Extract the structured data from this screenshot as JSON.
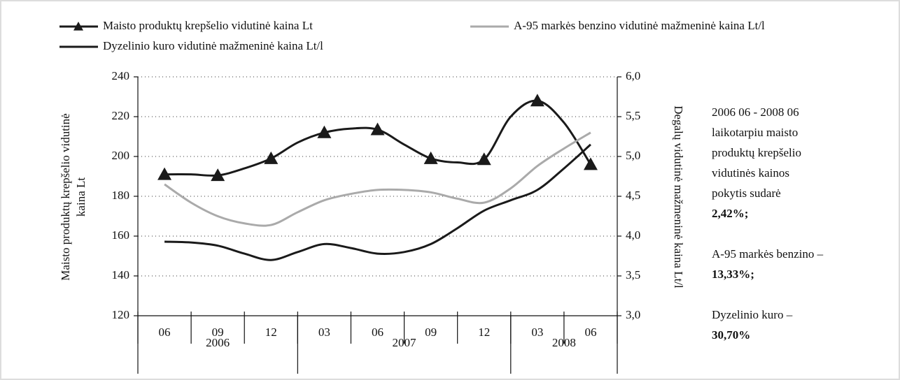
{
  "chart_data": {
    "type": "line",
    "categories": [
      "06",
      null,
      "09",
      null,
      "12",
      null,
      "03",
      null,
      "06",
      null,
      "09",
      null,
      "12",
      null,
      "03",
      null,
      "06"
    ],
    "year_groups": [
      {
        "label": "2006",
        "count": 3
      },
      {
        "label": "2007",
        "count": 4
      },
      {
        "label": "2008",
        "count": 2
      }
    ],
    "y_label": [
      "Maisto produktų krepšelio vidutinė",
      "kaina Lt"
    ],
    "y2_label": "Degalų vidutinė mažmeninė kaina Lt/l",
    "ylim": [
      120,
      240
    ],
    "yticks": [
      120,
      140,
      160,
      180,
      200,
      220,
      240
    ],
    "y2lim": [
      3,
      6
    ],
    "y2ticks": [
      {
        "value": 3,
        "label": "3,0"
      },
      {
        "value": 3.5,
        "label": "3,5"
      },
      {
        "value": 4,
        "label": "4,0"
      },
      {
        "value": 4.5,
        "label": "4,5"
      },
      {
        "value": 5,
        "label": "5,0"
      },
      {
        "value": 5.5,
        "label": "5,5"
      },
      {
        "value": 6,
        "label": "6,0"
      }
    ],
    "grid": true,
    "series": [
      {
        "name": "Maisto produktų krepšelio vidutinė kaina Lt",
        "color": "#1a1a1a",
        "marker": "triangle",
        "values": [
          191,
          191,
          190.5,
          194,
          199,
          207,
          212,
          214,
          213.5,
          206,
          199,
          197,
          198.5,
          220,
          228,
          217,
          196
        ]
      },
      {
        "name": "A-95 markės benzino vidutinė mažmeninė kaina Lt/l",
        "color": "#aaaaaa",
        "axis": "y2",
        "values": [
          4.65,
          4.42,
          4.25,
          4.16,
          4.14,
          4.3,
          4.45,
          4.53,
          4.58,
          4.58,
          4.55,
          4.47,
          4.42,
          4.6,
          4.88,
          5.1,
          5.3
        ]
      },
      {
        "name": "Dyzelinio kuro vidutinė mažmeninė kaina Lt/l",
        "color": "#1a1a1a",
        "axis": "y2",
        "values": [
          3.93,
          3.92,
          3.88,
          3.78,
          3.7,
          3.8,
          3.9,
          3.85,
          3.78,
          3.8,
          3.9,
          4.1,
          4.32,
          4.45,
          4.58,
          4.85,
          5.15
        ]
      }
    ],
    "annotation": [
      {
        "lines": [
          "2006 06 - 2008 06",
          "laikotarpiu maisto",
          "produktų krepšelio",
          "vidutinės kainos",
          "pokytis sudarė"
        ],
        "bold": "2,42%;"
      },
      {
        "lines": [
          "A-95 markės benzino –"
        ],
        "bold": "13,33%;"
      },
      {
        "lines": [
          "Dyzelinio kuro –"
        ],
        "bold": "30,70%"
      }
    ]
  }
}
